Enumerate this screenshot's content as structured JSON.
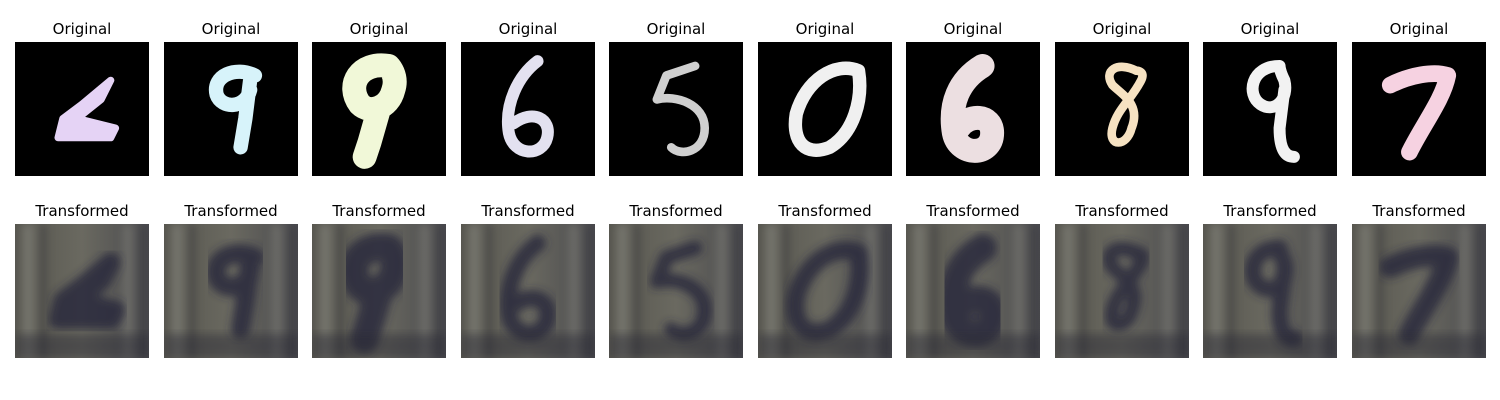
{
  "figure": {
    "original_title": "Original",
    "transformed_title": "Transformed"
  },
  "samples": [
    {
      "digit": "1",
      "ink_color": "#e5d3f5"
    },
    {
      "digit": "9",
      "ink_color": "#d7f3fa"
    },
    {
      "digit": "9",
      "ink_color": "#f1f8d8"
    },
    {
      "digit": "6",
      "ink_color": "#e3e1f0"
    },
    {
      "digit": "5",
      "ink_color": "#cfcfcf"
    },
    {
      "digit": "0",
      "ink_color": "#f0f0f0"
    },
    {
      "digit": "6",
      "ink_color": "#ecdfe1"
    },
    {
      "digit": "8",
      "ink_color": "#f6e2c2"
    },
    {
      "digit": "9",
      "ink_color": "#f2f2f2"
    },
    {
      "digit": "7",
      "ink_color": "#f6d2e1"
    }
  ],
  "colors": {
    "original_background": "#000000",
    "transformed_background": "#5f5e57"
  }
}
